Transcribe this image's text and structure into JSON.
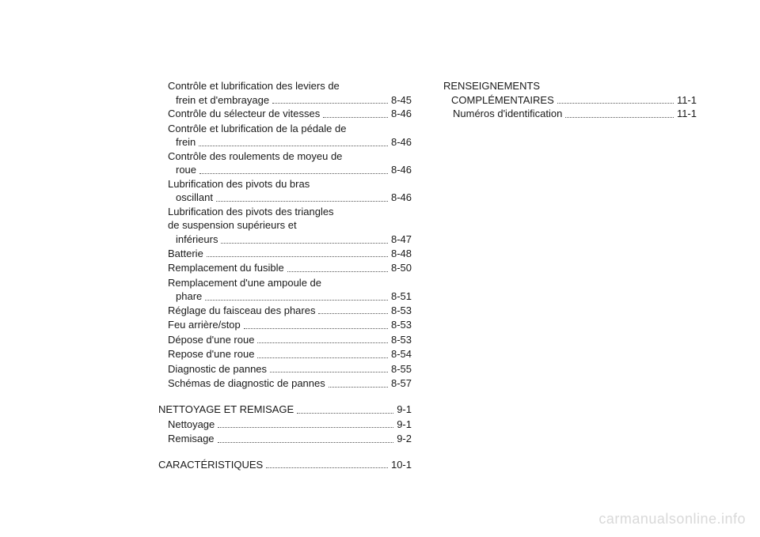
{
  "col1": {
    "items": [
      {
        "type": "multi",
        "indent": true,
        "lines": [
          "Contrôle et lubrification des leviers de"
        ],
        "last": "frein et d'embrayage",
        "page": "8-45"
      },
      {
        "type": "single",
        "indent": true,
        "label": "Contrôle du sélecteur de vitesses",
        "page": "8-46"
      },
      {
        "type": "multi",
        "indent": true,
        "lines": [
          "Contrôle et lubrification de la pédale de"
        ],
        "last": "frein",
        "page": "8-46"
      },
      {
        "type": "multi",
        "indent": true,
        "lines": [
          "Contrôle des roulements de moyeu de"
        ],
        "last": "roue",
        "page": "8-46"
      },
      {
        "type": "multi",
        "indent": true,
        "lines": [
          "Lubrification des pivots du bras"
        ],
        "last": "oscillant",
        "page": "8-46"
      },
      {
        "type": "multi",
        "indent": true,
        "lines": [
          "Lubrification des pivots des triangles",
          "de suspension supérieurs et"
        ],
        "last": "inférieurs",
        "page": "8-47"
      },
      {
        "type": "single",
        "indent": true,
        "label": "Batterie",
        "page": "8-48"
      },
      {
        "type": "single",
        "indent": true,
        "label": "Remplacement du fusible",
        "page": "8-50"
      },
      {
        "type": "multi",
        "indent": true,
        "lines": [
          "Remplacement d'une ampoule de"
        ],
        "last": "phare",
        "page": "8-51"
      },
      {
        "type": "single",
        "indent": true,
        "label": "Réglage du faisceau des phares",
        "page": "8-53"
      },
      {
        "type": "single",
        "indent": true,
        "label": "Feu arrière/stop",
        "page": "8-53"
      },
      {
        "type": "single",
        "indent": true,
        "label": "Dépose d'une roue",
        "page": "8-53"
      },
      {
        "type": "single",
        "indent": true,
        "label": "Repose d'une roue",
        "page": "8-54"
      },
      {
        "type": "single",
        "indent": true,
        "label": "Diagnostic de pannes",
        "page": "8-55"
      },
      {
        "type": "single",
        "indent": true,
        "label": "Schémas de diagnostic de pannes",
        "page": "8-57"
      },
      {
        "type": "gap"
      },
      {
        "type": "single",
        "indent": false,
        "label": "NETTOYAGE ET REMISAGE",
        "page": "9-1"
      },
      {
        "type": "single",
        "indent": true,
        "label": "Nettoyage",
        "page": "9-1"
      },
      {
        "type": "single",
        "indent": true,
        "label": "Remisage",
        "page": "9-2"
      },
      {
        "type": "gap"
      },
      {
        "type": "single",
        "indent": false,
        "label": "CARACTÉRISTIQUES",
        "page": "10-1"
      }
    ]
  },
  "col2": {
    "items": [
      {
        "type": "multi",
        "indent": false,
        "lines": [
          "RENSEIGNEMENTS"
        ],
        "last": "COMPLÉMENTAIRES",
        "page": "11-1"
      },
      {
        "type": "single",
        "indent": true,
        "label": "Numéros d'identification",
        "page": "11-1"
      }
    ]
  },
  "watermark": "carmanualsonline.info"
}
